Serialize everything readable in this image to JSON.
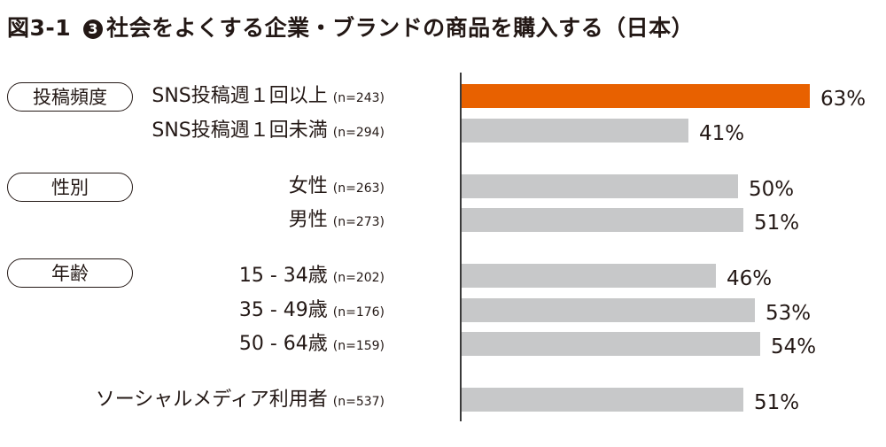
{
  "title": {
    "figure": "図3-1",
    "number": "3",
    "text": "社会をよくする企業・ブランドの商品を購入する（日本）"
  },
  "groups": [
    {
      "label": "投稿頻度"
    },
    {
      "label": "性別"
    },
    {
      "label": "年齢"
    }
  ],
  "rows": [
    {
      "label": "SNS投稿週１回以上",
      "n": "(n=243)",
      "value": 63,
      "display": "63%",
      "highlight": true
    },
    {
      "label": "SNS投稿週１回未満",
      "n": "(n=294)",
      "value": 41,
      "display": "41%",
      "highlight": false
    },
    {
      "label": "女性",
      "n": "(n=263)",
      "value": 50,
      "display": "50%",
      "highlight": false
    },
    {
      "label": "男性",
      "n": "(n=273)",
      "value": 51,
      "display": "51%",
      "highlight": false
    },
    {
      "label": "15 - 34歳",
      "n": "(n=202)",
      "value": 46,
      "display": "46%",
      "highlight": false
    },
    {
      "label": "35 - 49歳",
      "n": "(n=176)",
      "value": 53,
      "display": "53%",
      "highlight": false
    },
    {
      "label": "50 - 64歳",
      "n": "(n=159)",
      "value": 54,
      "display": "54%",
      "highlight": false
    },
    {
      "label": "ソーシャルメディア利用者",
      "n": "(n=537)",
      "value": 51,
      "display": "51%",
      "highlight": false
    }
  ],
  "colors": {
    "highlight": "#e86100",
    "bar": "#c7c8c9",
    "text": "#231815"
  },
  "chart_data": {
    "type": "bar",
    "orientation": "horizontal",
    "title": "図3-1 ❸ 社会をよくする企業・ブランドの商品を購入する（日本）",
    "categories": [
      "SNS投稿週１回以上 (n=243)",
      "SNS投稿週１回未満 (n=294)",
      "女性 (n=263)",
      "男性 (n=273)",
      "15 - 34歳 (n=202)",
      "35 - 49歳 (n=176)",
      "50 - 64歳 (n=159)",
      "ソーシャルメディア利用者 (n=537)"
    ],
    "groups": {
      "投稿頻度": [
        0,
        1
      ],
      "性別": [
        2,
        3
      ],
      "年齢": [
        4,
        5,
        6
      ]
    },
    "values": [
      63,
      41,
      50,
      51,
      46,
      53,
      54,
      51
    ],
    "unit": "%",
    "highlighted_index": 0,
    "xlabel": "",
    "ylabel": "",
    "grid": false,
    "legend": null
  }
}
